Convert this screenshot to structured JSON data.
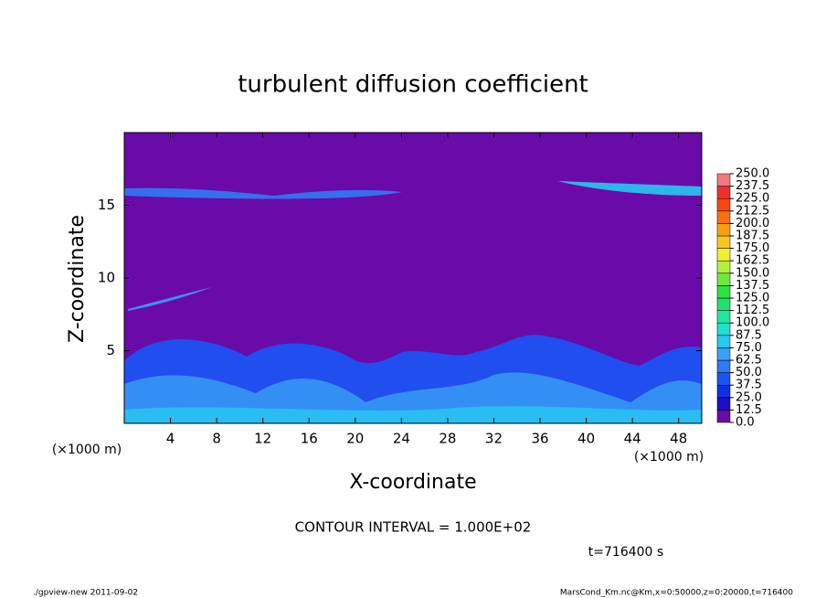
{
  "chart_data": {
    "type": "contour",
    "title": "turbulent diffusion coefficient",
    "x_label": "X-coordinate",
    "y_label": "Z-coordinate",
    "x_unit": "(×1000 m)",
    "xlim": [
      0,
      50
    ],
    "xticks": [
      4,
      8,
      12,
      16,
      20,
      24,
      28,
      32,
      36,
      40,
      44,
      48
    ],
    "ylim": [
      0,
      20
    ],
    "yticks": [
      5,
      10,
      15
    ],
    "annotations": [
      "CONTOUR INTERVAL = 1.000E+02",
      "t=716400 s"
    ],
    "footer_left": "./gpview-new  2011-09-02",
    "footer_right": "MarsCond_Km.nc@Km,x=0:50000,z=0:20000,t=716400",
    "colorbar": {
      "levels": [
        {
          "value": 0,
          "label": "0.0"
        },
        {
          "value": 12.5,
          "label": "12.5"
        },
        {
          "value": 25,
          "label": "25.0"
        },
        {
          "value": 37.5,
          "label": "37.5"
        },
        {
          "value": 50,
          "label": "50.0"
        },
        {
          "value": 62.5,
          "label": "62.5"
        },
        {
          "value": 75,
          "label": "75.0"
        },
        {
          "value": 87.5,
          "label": "87.5"
        },
        {
          "value": 100,
          "label": "100.0"
        },
        {
          "value": 112.5,
          "label": "112.5"
        },
        {
          "value": 125,
          "label": "125.0"
        },
        {
          "value": 137.5,
          "label": "137.5"
        },
        {
          "value": 150,
          "label": "150.0"
        },
        {
          "value": 162.5,
          "label": "162.5"
        },
        {
          "value": 175,
          "label": "175.0"
        },
        {
          "value": 187.5,
          "label": "187.5"
        },
        {
          "value": 200,
          "label": "200.0"
        },
        {
          "value": 212.5,
          "label": "212.5"
        },
        {
          "value": 225,
          "label": "225.0"
        },
        {
          "value": 237.5,
          "label": "237.5"
        },
        {
          "value": 250,
          "label": "250.0"
        }
      ],
      "colors": [
        "#6a0aa8",
        "#1a10c0",
        "#1030e8",
        "#1a55f5",
        "#2f7af5",
        "#3aa0f5",
        "#28c8f0",
        "#20e0d0",
        "#20e8a0",
        "#20e070",
        "#30e040",
        "#70e840",
        "#b0f040",
        "#f0f030",
        "#f8c820",
        "#f8a010",
        "#f87010",
        "#f84810",
        "#f03030",
        "#f07a80"
      ]
    }
  }
}
